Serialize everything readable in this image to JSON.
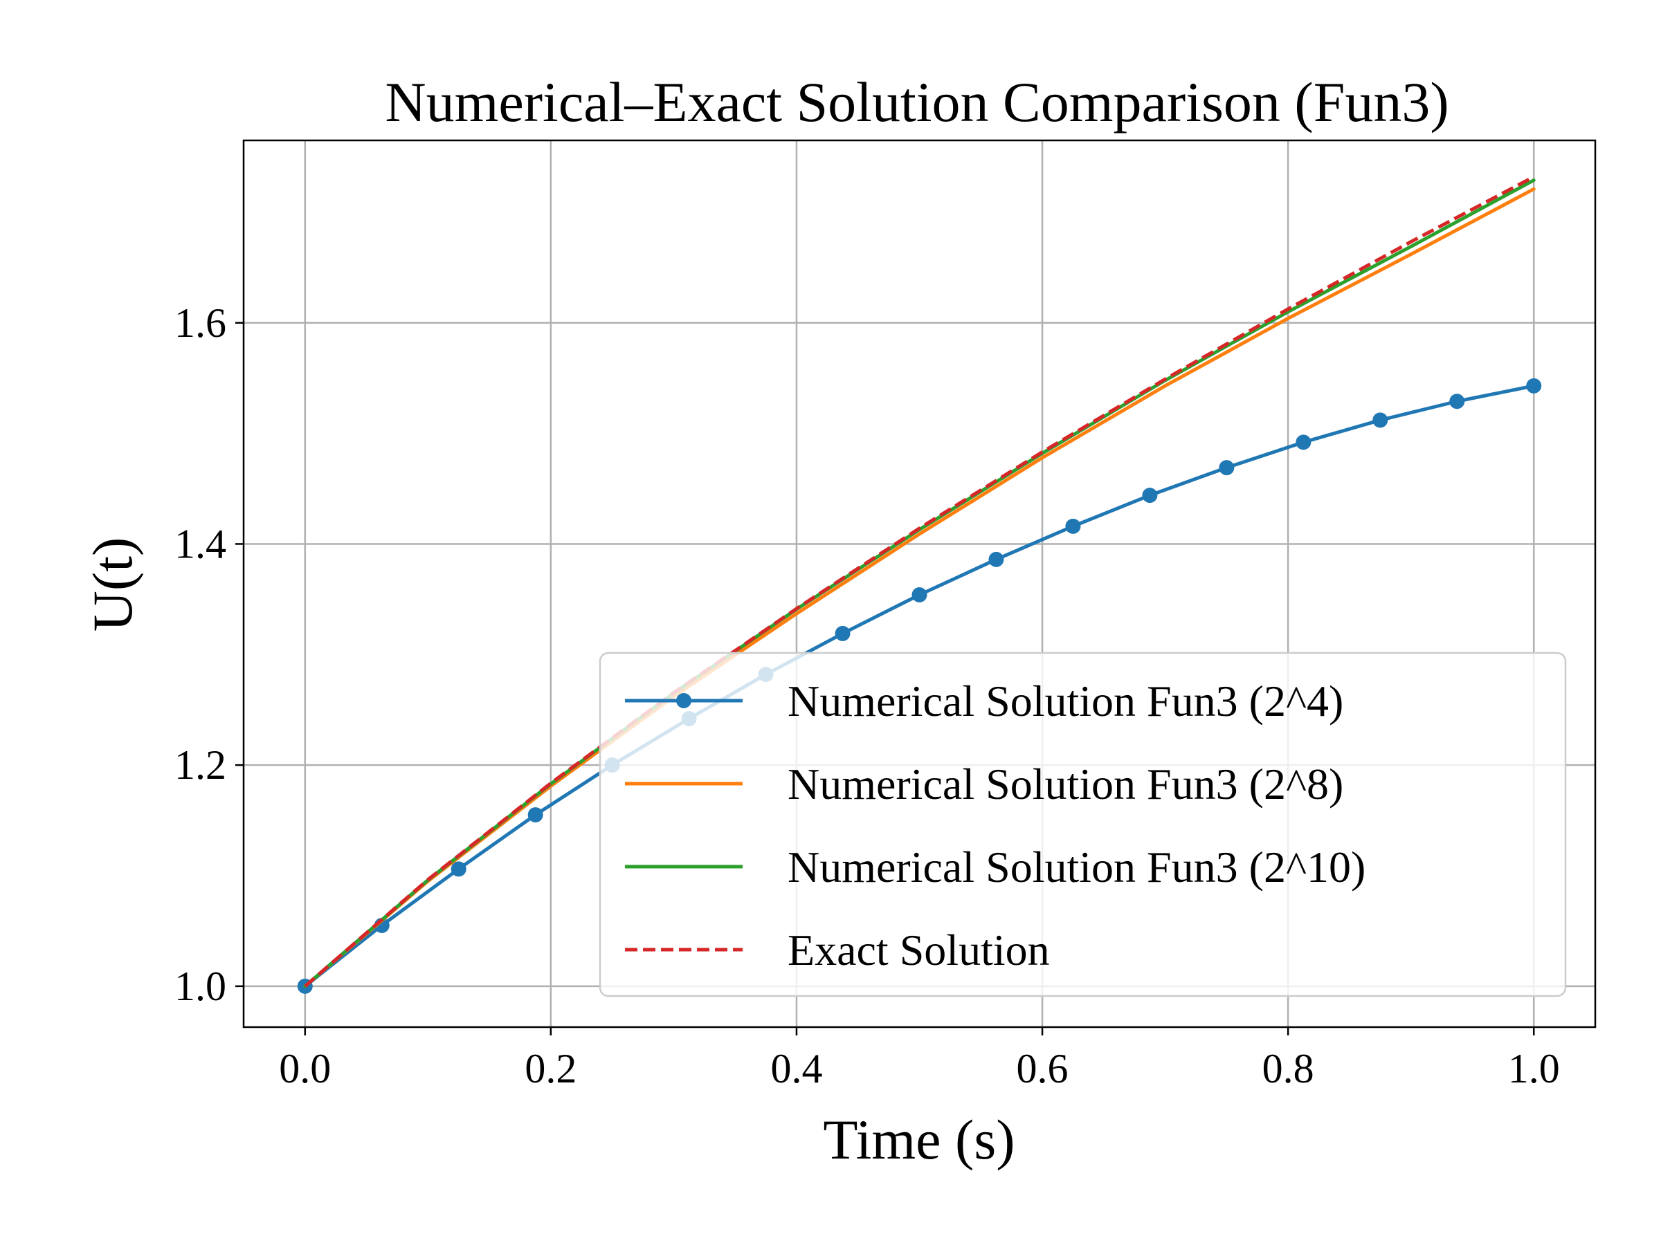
{
  "chart_data": {
    "type": "line",
    "title": "Numerical–Exact Solution Comparison (Fun3)",
    "xlabel": "Time (s)",
    "ylabel": "U(t)",
    "xlim": [
      -0.05,
      1.05
    ],
    "ylim": [
      0.963,
      1.765
    ],
    "xticks": [
      0.0,
      0.2,
      0.4,
      0.6,
      0.8,
      1.0
    ],
    "xtick_labels": [
      "0.0",
      "0.2",
      "0.4",
      "0.6",
      "0.8",
      "1.0"
    ],
    "yticks": [
      1.0,
      1.2,
      1.4,
      1.6
    ],
    "ytick_labels": [
      "1.0",
      "1.2",
      "1.4",
      "1.6"
    ],
    "grid": true,
    "legend_position": "lower-right",
    "series": [
      {
        "name": "Numerical Solution Fun3 (2^4)",
        "color": "#1f77b4",
        "style": "solid",
        "markers": true,
        "x": [
          0.0,
          0.0625,
          0.125,
          0.1875,
          0.25,
          0.3125,
          0.375,
          0.4375,
          0.5,
          0.5625,
          0.625,
          0.6875,
          0.75,
          0.8125,
          0.875,
          0.9375,
          1.0
        ],
        "y": [
          1.0,
          1.055,
          1.106,
          1.155,
          1.2,
          1.242,
          1.282,
          1.319,
          1.354,
          1.386,
          1.416,
          1.444,
          1.469,
          1.492,
          1.512,
          1.529,
          1.543
        ]
      },
      {
        "name": "Numerical Solution Fun3 (2^8)",
        "color": "#ff7f0e",
        "style": "solid",
        "markers": false,
        "x": [
          0.0,
          0.1,
          0.2,
          0.3,
          0.4,
          0.5,
          0.6,
          0.7,
          0.8,
          0.9,
          1.0
        ],
        "y": [
          1.0,
          1.095,
          1.181,
          1.262,
          1.337,
          1.409,
          1.478,
          1.543,
          1.604,
          1.662,
          1.721
        ]
      },
      {
        "name": "Numerical Solution Fun3 (2^10)",
        "color": "#2ca02c",
        "style": "solid",
        "markers": false,
        "x": [
          0.0,
          0.1,
          0.2,
          0.3,
          0.4,
          0.5,
          0.6,
          0.7,
          0.8,
          0.9,
          1.0
        ],
        "y": [
          1.0,
          1.096,
          1.183,
          1.265,
          1.341,
          1.413,
          1.482,
          1.548,
          1.61,
          1.669,
          1.729
        ]
      },
      {
        "name": "Exact Solution",
        "color": "#d62728",
        "style": "dashed",
        "markers": false,
        "x": [
          0.0,
          0.1,
          0.2,
          0.3,
          0.4,
          0.5,
          0.6,
          0.7,
          0.8,
          0.9,
          1.0
        ],
        "y": [
          1.0,
          1.0964,
          1.1836,
          1.2654,
          1.3415,
          1.4142,
          1.4832,
          1.5491,
          1.6125,
          1.6733,
          1.7321
        ]
      }
    ]
  }
}
